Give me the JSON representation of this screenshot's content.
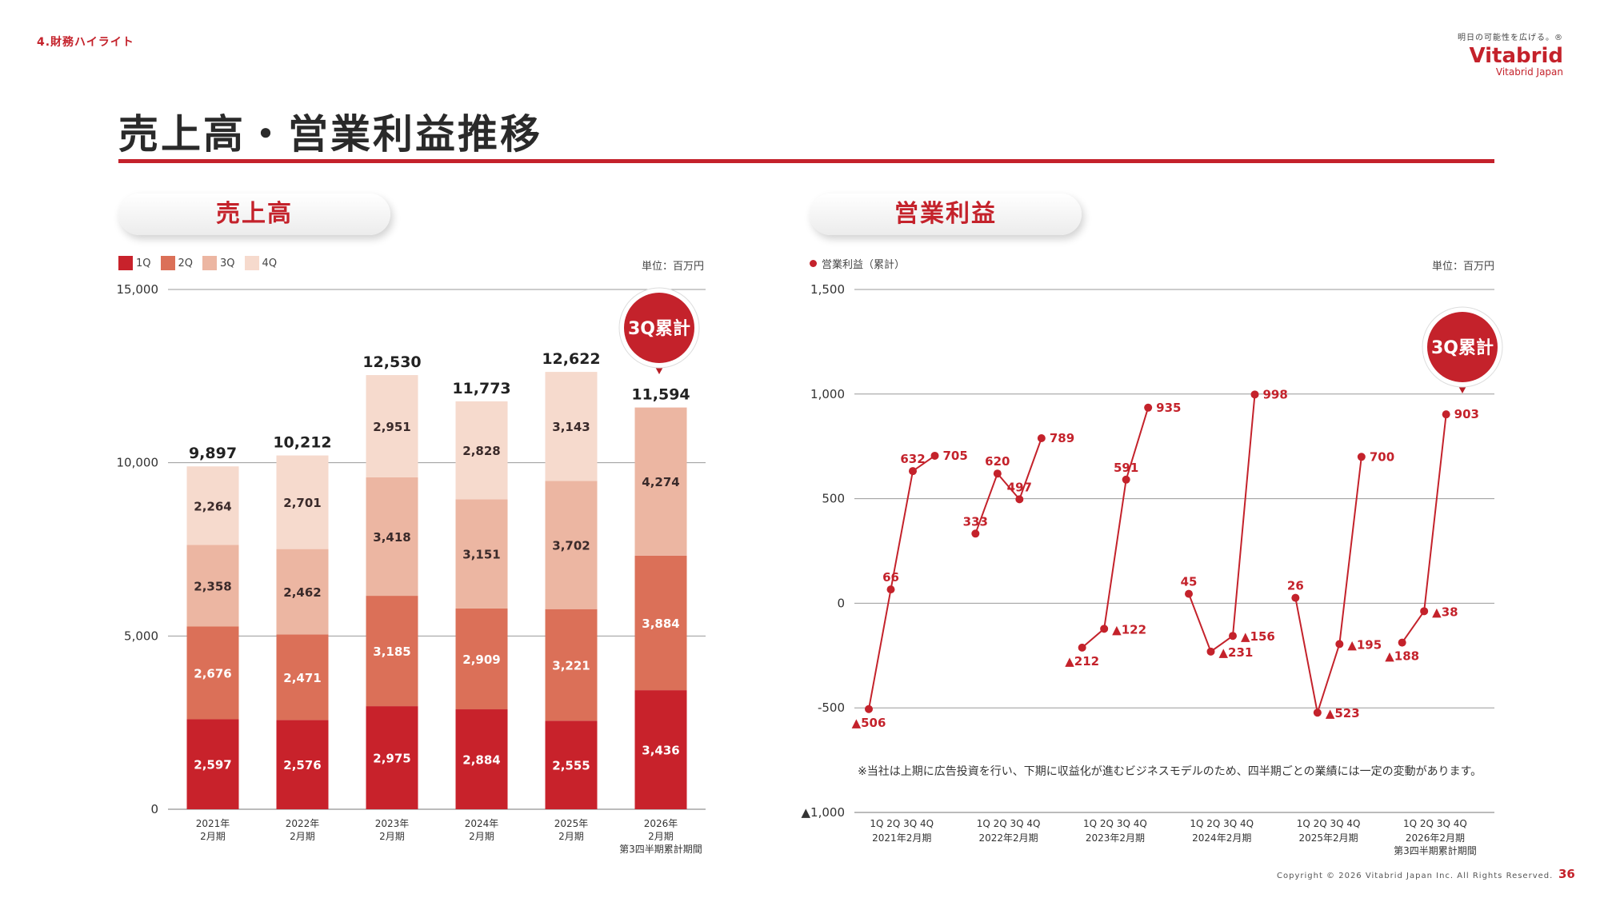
{
  "header": {
    "section": "4.財務ハイライト",
    "tagline": "明日の可能性を広げる。®",
    "brand_name": "Vitabrid",
    "brand_sub": "Vitabrid Japan",
    "title": "売上高・営業利益推移"
  },
  "colors": {
    "accent": "#c4222b",
    "q1": "#c8222b",
    "q2": "#db7058",
    "q3": "#ecb6a2",
    "q4": "#f6dacd"
  },
  "chart_data": [
    {
      "type": "bar",
      "stacked": true,
      "title": "売上高",
      "unit": "単位：百万円",
      "legend": [
        "1Q",
        "2Q",
        "3Q",
        "4Q"
      ],
      "categories": [
        "2021年\n2月期",
        "2022年\n2月期",
        "2023年\n2月期",
        "2024年\n2月期",
        "2025年\n2月期",
        "2026年\n2月期\n第3四半期累計期間"
      ],
      "series": [
        {
          "name": "1Q",
          "values": [
            2597,
            2576,
            2975,
            2884,
            2555,
            3436
          ]
        },
        {
          "name": "2Q",
          "values": [
            2676,
            2471,
            3185,
            2909,
            3221,
            3884
          ]
        },
        {
          "name": "3Q",
          "values": [
            2358,
            2462,
            3418,
            3151,
            3702,
            4274
          ]
        },
        {
          "name": "4Q",
          "values": [
            2264,
            2701,
            2951,
            2828,
            3143,
            null
          ]
        }
      ],
      "totals": [
        "9,897",
        "10,212",
        "12,530",
        "11,773",
        "12,622",
        "11,594"
      ],
      "segment_labels": [
        [
          "2,597",
          "2,676",
          "2,358",
          "2,264"
        ],
        [
          "2,576",
          "2,471",
          "2,462",
          "2,701"
        ],
        [
          "2,975",
          "3,185",
          "3,418",
          "2,951"
        ],
        [
          "2,884",
          "2,909",
          "3,151",
          "2,828"
        ],
        [
          "2,555",
          "3,221",
          "3,702",
          "3,143"
        ],
        [
          "3,436",
          "3,884",
          "4,274"
        ]
      ],
      "ylim": [
        0,
        15000
      ],
      "yticks": [
        0,
        5000,
        10000,
        15000
      ],
      "ytick_labels": [
        "0",
        "5,000",
        "10,000",
        "15,000"
      ],
      "badge": "3Q累計"
    },
    {
      "type": "line",
      "title": "営業利益",
      "legend": [
        "営業利益（累計）"
      ],
      "unit": "単位：百万円",
      "quarter_labels": "1Q 2Q 3Q 4Q",
      "groups": [
        {
          "label": "2021年2月期",
          "values": [
            -506,
            66,
            632,
            705
          ],
          "labels": [
            "▲506",
            "66",
            "632",
            "705"
          ]
        },
        {
          "label": "2022年2月期",
          "values": [
            333,
            620,
            497,
            789
          ],
          "labels": [
            "333",
            "620",
            "497",
            "789"
          ]
        },
        {
          "label": "2023年2月期",
          "values": [
            -212,
            -122,
            591,
            935
          ],
          "labels": [
            "▲212",
            "▲122",
            "591",
            "935"
          ]
        },
        {
          "label": "2024年2月期",
          "values": [
            45,
            -231,
            -156,
            998
          ],
          "labels": [
            "45",
            "▲231",
            "▲156",
            "998"
          ]
        },
        {
          "label": "2025年2月期",
          "values": [
            26,
            -523,
            -195,
            700
          ],
          "labels": [
            "26",
            "▲523",
            "▲195",
            "700"
          ]
        },
        {
          "label": "2026年2月期\n第3四半期累計期間",
          "values": [
            -188,
            -38,
            903
          ],
          "labels": [
            "▲188",
            "▲38",
            "903"
          ]
        }
      ],
      "ylim": [
        -1000,
        1500
      ],
      "yticks": [
        -1000,
        -500,
        0,
        500,
        1000,
        1500
      ],
      "ytick_labels": [
        "▲1,000",
        "-500",
        "0",
        "500",
        "1,000",
        "1,500"
      ],
      "badge": "3Q累計",
      "note": "※当社は上期に広告投資を行い、下期に収益化が進むビジネスモデルのため、四半期ごとの業績には一定の変動があります。"
    }
  ],
  "footer": {
    "copyright": "Copyright © 2026 Vitabrid Japan Inc. All Rights Reserved.",
    "page": "36"
  }
}
